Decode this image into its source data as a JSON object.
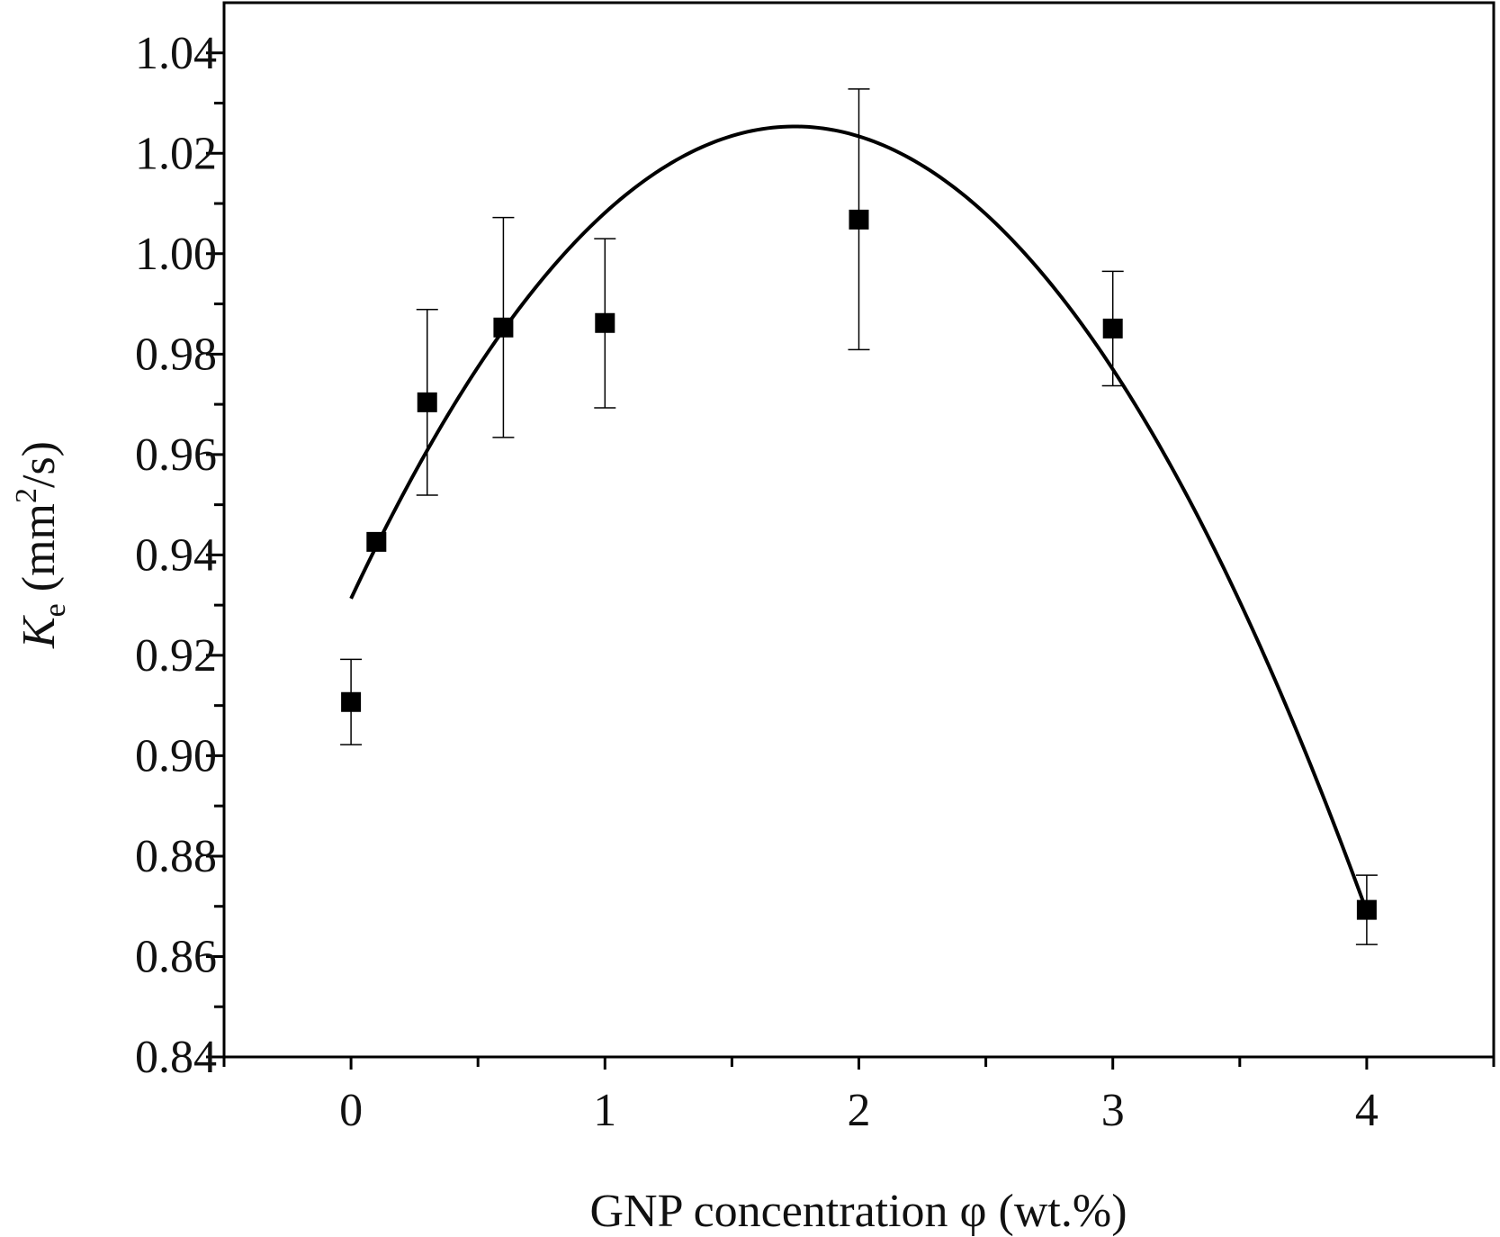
{
  "chart_data": {
    "type": "scatter",
    "title": "",
    "xlabel": "GNP concentration φ (wt.%)",
    "ylabel": {
      "symbol": "K",
      "subscript": "e",
      "unit_prefix": " (mm",
      "unit_superscript": "2",
      "unit_suffix": "/s)"
    },
    "xlim": [
      -0.5,
      4.5
    ],
    "ylim": [
      0.84,
      1.05
    ],
    "x_ticks": [
      0,
      1,
      2,
      3,
      4
    ],
    "x_tick_labels": [
      "0",
      "1",
      "2",
      "3",
      "4"
    ],
    "x_minor_ticks": [
      -0.5,
      0.5,
      1.5,
      2.5,
      3.5,
      4.5
    ],
    "y_ticks": [
      0.84,
      0.86,
      0.88,
      0.9,
      0.92,
      0.94,
      0.96,
      0.98,
      1.0,
      1.02,
      1.04
    ],
    "y_tick_labels": [
      "0.84",
      "0.86",
      "0.88",
      "0.90",
      "0.92",
      "0.94",
      "0.96",
      "0.98",
      "1.00",
      "1.02",
      "1.04"
    ],
    "y_minor_ticks": [
      0.85,
      0.87,
      0.89,
      0.91,
      0.93,
      0.95,
      0.97,
      0.99,
      1.01,
      1.03
    ],
    "grid": false,
    "series": [
      {
        "marker": "square",
        "color": "#000000",
        "points": [
          {
            "x": 0.0,
            "y": 0.9107,
            "err_low": 0.9022,
            "err_high": 0.9192
          },
          {
            "x": 0.1,
            "y": 0.9426
          },
          {
            "x": 0.3,
            "y": 0.9704,
            "err_low": 0.9519,
            "err_high": 0.9889
          },
          {
            "x": 0.6,
            "y": 0.9853,
            "err_low": 0.9634,
            "err_high": 1.0072
          },
          {
            "x": 1.0,
            "y": 0.9862,
            "err_low": 0.9693,
            "err_high": 1.003
          },
          {
            "x": 2.0,
            "y": 1.0068,
            "err_low": 0.9809,
            "err_high": 1.0328
          },
          {
            "x": 3.0,
            "y": 0.9851,
            "err_low": 0.9737,
            "err_high": 0.9965
          },
          {
            "x": 4.0,
            "y": 0.8693,
            "err_low": 0.8624,
            "err_high": 0.8762
          }
        ]
      }
    ],
    "fit_curve": {
      "type": "quadratic",
      "color": "#000000",
      "x_range": [
        0.0,
        4.0
      ],
      "coefficients": [
        0.9313,
        0.10766,
        -0.03081
      ]
    }
  }
}
